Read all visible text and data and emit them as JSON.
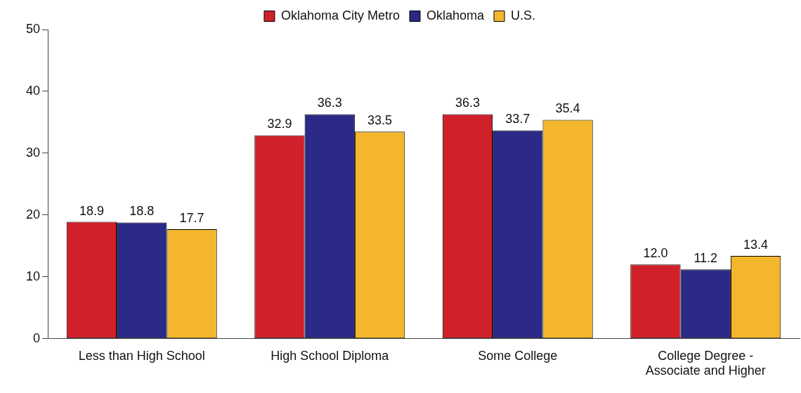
{
  "chart_data": {
    "type": "bar",
    "categories": [
      "Less than High School",
      "High School Diploma",
      "Some College",
      "College Degree - Associate and Higher"
    ],
    "series": [
      {
        "name": "Oklahoma City Metro",
        "color": "#d0202a",
        "values": [
          18.9,
          32.9,
          36.3,
          12.0
        ],
        "value_labels": [
          "18.9",
          "32.9",
          "36.3",
          "12.0"
        ]
      },
      {
        "name": "Oklahoma",
        "color": "#2b2a86",
        "values": [
          18.8,
          36.3,
          33.7,
          11.2
        ],
        "value_labels": [
          "18.8",
          "36.3",
          "33.7",
          "11.2"
        ]
      },
      {
        "name": "U.S.",
        "color": "#f4b62c",
        "values": [
          17.7,
          33.5,
          35.4,
          13.4
        ],
        "value_labels": [
          "17.7",
          "33.5",
          "35.4",
          "13.4"
        ]
      }
    ],
    "ylim": [
      0,
      50
    ],
    "yticks": [
      0,
      10,
      20,
      30,
      40,
      50
    ],
    "grid": false,
    "legend": "top"
  }
}
